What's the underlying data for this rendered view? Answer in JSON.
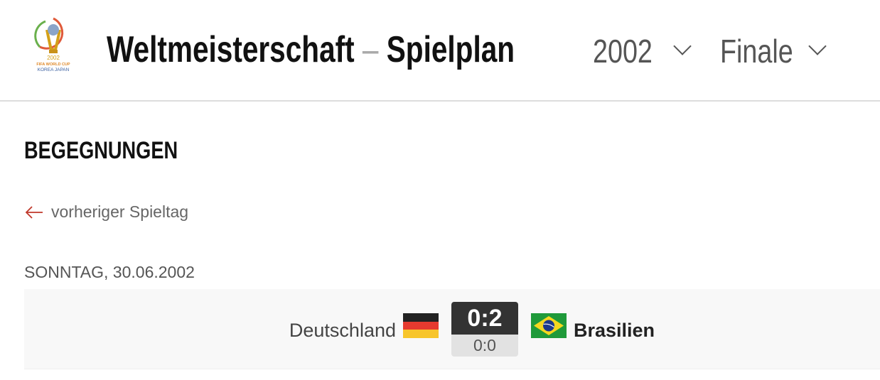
{
  "header": {
    "logo_text": "2002 FIFA WORLD CUP KOREA JAPAN",
    "title_part1": "Weltmeisterschaft",
    "separator": "–",
    "title_part2": "Spielplan",
    "season_select": "2002",
    "round_select": "Finale"
  },
  "section": {
    "title": "BEGEGNUNGEN",
    "prev_link": "vorheriger Spieltag",
    "icons": {
      "prev": "arrow-left-icon",
      "dropdown": "chevron-down-icon"
    },
    "accent": "#c0392b"
  },
  "matchday": {
    "date": "SONNTAG, 30.06.2002",
    "matches": [
      {
        "home": "Deutschland",
        "away": "Brasilien",
        "score": "0:2",
        "halftime": "0:0",
        "home_flag": "germany-flag",
        "away_flag": "brazil-flag"
      }
    ]
  }
}
